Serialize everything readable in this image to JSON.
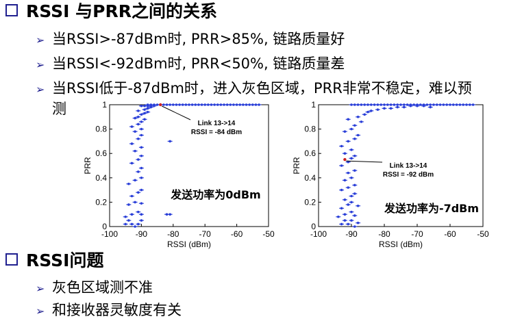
{
  "section1": {
    "title": "RSSI 与PRR之间的关系",
    "bullets": [
      "当RSSI>-87dBm时, PRR>85%, 链路质量好",
      "当RSSI<-92dBm时, PRR<50%, 链路质量差",
      "当RSSI低于-87dBm时，进入灰色区域，PRR非常不稳定，难以预",
      "测"
    ]
  },
  "section2": {
    "title": "RSSI问题",
    "bullets": [
      "灰色区域测不准",
      "和接收器灵敏度有关"
    ]
  },
  "colors": {
    "points": "#2a3fd8",
    "marker": "#cc2222",
    "heading_square": "#1f1f8f"
  },
  "chart_data": [
    {
      "type": "scatter",
      "xlabel": "RSSI (dBm)",
      "ylabel": "PRR",
      "xlim": [
        -100,
        -50
      ],
      "ylim": [
        0,
        1
      ],
      "xticks": [
        "-100",
        "-90",
        "-80",
        "-70",
        "-60",
        "-50"
      ],
      "yticks": [
        "0",
        "0.2",
        "0.4",
        "0.6",
        "0.8",
        "1"
      ],
      "annotation": {
        "line1": "Link 13->14",
        "line2": "RSSI = -84 dBm",
        "x": -84,
        "y": 1.0
      },
      "caption": "发送功率为0dBm",
      "points": [
        [
          -95,
          0.02
        ],
        [
          -94,
          0.05
        ],
        [
          -93,
          0.02
        ],
        [
          -92,
          0.0
        ],
        [
          -91,
          0.02
        ],
        [
          -90,
          0.05
        ],
        [
          -95,
          0.08
        ],
        [
          -93,
          0.1
        ],
        [
          -91,
          0.12
        ],
        [
          -90,
          0.1
        ],
        [
          -82,
          0.1
        ],
        [
          -81,
          0.1
        ],
        [
          -94,
          0.18
        ],
        [
          -92,
          0.2
        ],
        [
          -90,
          0.19
        ],
        [
          -93,
          0.25
        ],
        [
          -91,
          0.28
        ],
        [
          -90,
          0.3
        ],
        [
          -94,
          0.35
        ],
        [
          -92,
          0.38
        ],
        [
          -90,
          0.4
        ],
        [
          -91,
          0.45
        ],
        [
          -90,
          0.48
        ],
        [
          -93,
          0.52
        ],
        [
          -91,
          0.55
        ],
        [
          -90,
          0.58
        ],
        [
          -92,
          0.62
        ],
        [
          -90,
          0.65
        ],
        [
          -93,
          0.68
        ],
        [
          -91,
          0.72
        ],
        [
          -90,
          0.75
        ],
        [
          -81,
          0.7
        ],
        [
          -92,
          0.78
        ],
        [
          -90,
          0.8
        ],
        [
          -93,
          0.82
        ],
        [
          -91,
          0.84
        ],
        [
          -90,
          0.86
        ],
        [
          -89,
          0.88
        ],
        [
          -92,
          0.89
        ],
        [
          -91,
          0.9
        ],
        [
          -90,
          0.92
        ],
        [
          -89,
          0.93
        ],
        [
          -88,
          0.94
        ],
        [
          -91,
          0.95
        ],
        [
          -89,
          0.96
        ],
        [
          -88,
          0.97
        ],
        [
          -87,
          0.98
        ],
        [
          -86,
          0.99
        ],
        [
          -90,
          0.99
        ],
        [
          -85,
          1.0
        ],
        [
          -84,
          1.0
        ],
        [
          -83,
          1.0
        ],
        [
          -82,
          1.0
        ],
        [
          -81,
          1.0
        ],
        [
          -80,
          1.0
        ],
        [
          -79,
          1.0
        ],
        [
          -78,
          1.0
        ],
        [
          -77,
          1.0
        ],
        [
          -76,
          1.0
        ],
        [
          -75,
          1.0
        ],
        [
          -74,
          1.0
        ],
        [
          -73,
          1.0
        ],
        [
          -72,
          1.0
        ],
        [
          -71,
          1.0
        ],
        [
          -70,
          1.0
        ],
        [
          -69,
          1.0
        ],
        [
          -68,
          1.0
        ],
        [
          -67,
          1.0
        ],
        [
          -66,
          1.0
        ],
        [
          -65,
          1.0
        ],
        [
          -64,
          1.0
        ],
        [
          -63,
          1.0
        ],
        [
          -62,
          1.0
        ],
        [
          -61,
          1.0
        ],
        [
          -60,
          1.0
        ],
        [
          -59,
          1.0
        ],
        [
          -58,
          1.0
        ],
        [
          -57,
          1.0
        ],
        [
          -56,
          1.0
        ],
        [
          -55,
          1.0
        ],
        [
          -54,
          1.0
        ],
        [
          -53,
          1.0
        ],
        [
          -88,
          1.0
        ],
        [
          -87,
          1.0
        ],
        [
          -86,
          1.0
        ],
        [
          -89,
          0.99
        ],
        [
          -88,
          0.99
        ],
        [
          -87,
          0.99
        ]
      ]
    },
    {
      "type": "scatter",
      "xlabel": "RSSI (dBm)",
      "ylabel": "PRR",
      "xlim": [
        -100,
        -50
      ],
      "ylim": [
        0,
        1
      ],
      "xticks": [
        "-100",
        "-90",
        "-80",
        "-70",
        "-60",
        "-50"
      ],
      "yticks": [
        "0",
        "0.2",
        "0.4",
        "0.6",
        "0.8",
        "1"
      ],
      "annotation": {
        "line1": "Link 13->14",
        "line2": "RSSI = -92 dBm",
        "x": -92,
        "y": 0.55
      },
      "caption": "发送功率为-7dBm",
      "points": [
        [
          -93,
          0.02
        ],
        [
          -92,
          0.05
        ],
        [
          -91,
          0.02
        ],
        [
          -90,
          0.05
        ],
        [
          -89,
          0.0
        ],
        [
          -88,
          0.03
        ],
        [
          -94,
          0.08
        ],
        [
          -92,
          0.1
        ],
        [
          -90,
          0.12
        ],
        [
          -89,
          0.09
        ],
        [
          -93,
          0.15
        ],
        [
          -91,
          0.18
        ],
        [
          -90,
          0.2
        ],
        [
          -88,
          0.17
        ],
        [
          -92,
          0.22
        ],
        [
          -90,
          0.25
        ],
        [
          -89,
          0.27
        ],
        [
          -93,
          0.3
        ],
        [
          -91,
          0.32
        ],
        [
          -89,
          0.34
        ],
        [
          -92,
          0.38
        ],
        [
          -90,
          0.4
        ],
        [
          -91,
          0.44
        ],
        [
          -89,
          0.46
        ],
        [
          -93,
          0.5
        ],
        [
          -91,
          0.53
        ],
        [
          -90,
          0.56
        ],
        [
          -89,
          0.58
        ],
        [
          -92,
          0.6
        ],
        [
          -90,
          0.63
        ],
        [
          -93,
          0.66
        ],
        [
          -91,
          0.7
        ],
        [
          -89,
          0.72
        ],
        [
          -88,
          0.75
        ],
        [
          -92,
          0.78
        ],
        [
          -90,
          0.8
        ],
        [
          -89,
          0.83
        ],
        [
          -87,
          0.86
        ],
        [
          -91,
          0.88
        ],
        [
          -88,
          0.9
        ],
        [
          -86,
          0.92
        ],
        [
          -85,
          0.94
        ],
        [
          -84,
          0.95
        ],
        [
          -82,
          0.96
        ],
        [
          -80,
          0.97
        ],
        [
          -78,
          0.97
        ],
        [
          -76,
          0.98
        ],
        [
          -74,
          0.98
        ],
        [
          -72,
          0.99
        ],
        [
          -70,
          0.99
        ],
        [
          -68,
          0.99
        ],
        [
          -66,
          0.98
        ],
        [
          -90,
          1.0
        ],
        [
          -89,
          1.0
        ],
        [
          -88,
          1.0
        ],
        [
          -87,
          1.0
        ],
        [
          -86,
          1.0
        ],
        [
          -85,
          1.0
        ],
        [
          -84,
          1.0
        ],
        [
          -83,
          1.0
        ],
        [
          -82,
          1.0
        ],
        [
          -81,
          1.0
        ],
        [
          -80,
          1.0
        ],
        [
          -79,
          1.0
        ],
        [
          -78,
          1.0
        ],
        [
          -77,
          1.0
        ],
        [
          -76,
          1.0
        ],
        [
          -75,
          1.0
        ],
        [
          -74,
          1.0
        ],
        [
          -73,
          1.0
        ],
        [
          -72,
          1.0
        ],
        [
          -71,
          1.0
        ],
        [
          -70,
          1.0
        ],
        [
          -69,
          1.0
        ],
        [
          -68,
          1.0
        ],
        [
          -67,
          1.0
        ],
        [
          -66,
          1.0
        ],
        [
          -65,
          1.0
        ],
        [
          -64,
          1.0
        ],
        [
          -63,
          1.0
        ],
        [
          -62,
          1.0
        ],
        [
          -61,
          1.0
        ],
        [
          -60,
          1.0
        ],
        [
          -59,
          1.0
        ],
        [
          -58,
          1.0
        ],
        [
          -57,
          1.0
        ],
        [
          -56,
          1.0
        ],
        [
          -55,
          1.0
        ],
        [
          -54,
          1.0
        ],
        [
          -53,
          1.0
        ]
      ]
    }
  ]
}
